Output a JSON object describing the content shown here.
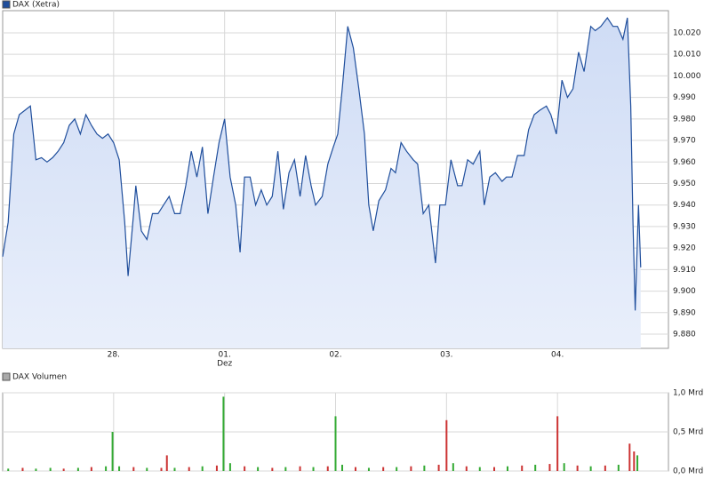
{
  "chart_data": [
    {
      "type": "line",
      "title": "DAX (Xetra)",
      "color": "#1f4e9c",
      "fill_top": "#cfdcf5",
      "fill_bottom": "#e9effb",
      "x": [
        0,
        0.05,
        0.1,
        0.15,
        0.2,
        0.25,
        0.3,
        0.35,
        0.4,
        0.45,
        0.5,
        0.55,
        0.6,
        0.65,
        0.7,
        0.75,
        0.8,
        0.85,
        0.9,
        0.95,
        1,
        1.05,
        1.1,
        1.13,
        1.18,
        1.2,
        1.25,
        1.3,
        1.35,
        1.4,
        1.45,
        1.5,
        1.55,
        1.6,
        1.65,
        1.7,
        1.75,
        1.8,
        1.85,
        1.9,
        1.95,
        2,
        2.05,
        2.1,
        2.14,
        2.18,
        2.23,
        2.28,
        2.33,
        2.38,
        2.43,
        2.48,
        2.53,
        2.58,
        2.63,
        2.68,
        2.73,
        2.78,
        2.82,
        2.88,
        2.93,
        2.98,
        3.02,
        3.06,
        3.11,
        3.16,
        3.21,
        3.26,
        3.3,
        3.34,
        3.39,
        3.45,
        3.5,
        3.54,
        3.59,
        3.64,
        3.7,
        3.74,
        3.79,
        3.84,
        3.9,
        3.94,
        3.99,
        4.04,
        4.1,
        4.14,
        4.19,
        4.24,
        4.3,
        4.34,
        4.39,
        4.44,
        4.5,
        4.54,
        4.59,
        4.64,
        4.7,
        4.74,
        4.79,
        4.84,
        4.9,
        4.94,
        4.99,
        5.04,
        5.09,
        5.14,
        5.19,
        5.24,
        5.3,
        5.34,
        5.39,
        5.45,
        5.5,
        5.54,
        5.59,
        5.63,
        5.66,
        5.68,
        5.7,
        5.73,
        5.75
      ],
      "values": [
        9916,
        9932,
        9973,
        9982,
        9984,
        9986,
        9961,
        9962,
        9960,
        9962,
        9965,
        9969,
        9977,
        9980,
        9973,
        9982,
        9977,
        9973,
        9971,
        9973,
        9969,
        9961,
        9932,
        9907,
        9936,
        9949,
        9928,
        9924,
        9936,
        9936,
        9940,
        9944,
        9936,
        9936,
        9949,
        9965,
        9953,
        9967,
        9936,
        9953,
        9969,
        9980,
        9953,
        9940,
        9918,
        9953,
        9953,
        9940,
        9947,
        9940,
        9944,
        9965,
        9938,
        9955,
        9961,
        9944,
        9963,
        9949,
        9940,
        9944,
        9959,
        9967,
        9973,
        9994,
        10023,
        10013,
        9994,
        9973,
        9940,
        9928,
        9942,
        9947,
        9957,
        9955,
        9969,
        9965,
        9961,
        9959,
        9936,
        9940,
        9913,
        9940,
        9940,
        9961,
        9949,
        9949,
        9961,
        9959,
        9965,
        9940,
        9953,
        9955,
        9951,
        9953,
        9953,
        9963,
        9963,
        9975,
        9982,
        9984,
        9986,
        9982,
        9973,
        9998,
        9990,
        9994,
        10011,
        10002,
        10023,
        10021,
        10023,
        10027,
        10023,
        10023,
        10017,
        10027,
        9986,
        9932,
        9891,
        9940,
        9911
      ],
      "xlim": [
        0,
        6
      ],
      "xticks": [
        {
          "value": 1,
          "label": "28."
        },
        {
          "value": 2,
          "label": "01."
        },
        {
          "value": 3,
          "label": "02."
        },
        {
          "value": 4,
          "label": "03."
        },
        {
          "value": 5,
          "label": "04."
        }
      ],
      "x_month_labels": [
        {
          "value": 2,
          "label": "Dez"
        }
      ],
      "ylim": [
        9873.4,
        10030.3
      ],
      "yticks": [
        {
          "value": 9880,
          "label": "9.880"
        },
        {
          "value": 9890,
          "label": "9.890"
        },
        {
          "value": 9900,
          "label": "9.900"
        },
        {
          "value": 9910,
          "label": "9.910"
        },
        {
          "value": 9920,
          "label": "9.920"
        },
        {
          "value": 9930,
          "label": "9.930"
        },
        {
          "value": 9940,
          "label": "9.940"
        },
        {
          "value": 9950,
          "label": "9.950"
        },
        {
          "value": 9960,
          "label": "9.960"
        },
        {
          "value": 9970,
          "label": "9.970"
        },
        {
          "value": 9980,
          "label": "9.980"
        },
        {
          "value": 9990,
          "label": "9.990"
        },
        {
          "value": 10000,
          "label": "10.000"
        },
        {
          "value": 10010,
          "label": "10.010"
        },
        {
          "value": 10020,
          "label": "10.020"
        }
      ],
      "grid": true
    },
    {
      "type": "bar",
      "title": "DAX Volumen",
      "color": "#aaaaaa",
      "x": [
        0.05,
        0.18,
        0.3,
        0.43,
        0.55,
        0.68,
        0.8,
        0.93,
        0.99,
        1.05,
        1.18,
        1.3,
        1.43,
        1.48,
        1.55,
        1.68,
        1.8,
        1.93,
        1.99,
        2.05,
        2.18,
        2.3,
        2.43,
        2.55,
        2.68,
        2.8,
        2.93,
        3.0,
        3.06,
        3.18,
        3.3,
        3.43,
        3.55,
        3.68,
        3.8,
        3.93,
        4.0,
        4.06,
        4.18,
        4.3,
        4.43,
        4.55,
        4.68,
        4.8,
        4.93,
        5.0,
        5.06,
        5.18,
        5.3,
        5.43,
        5.55,
        5.65,
        5.69,
        5.72
      ],
      "values": [
        0.03,
        0.04,
        0.03,
        0.04,
        0.03,
        0.04,
        0.05,
        0.06,
        0.5,
        0.06,
        0.05,
        0.04,
        0.04,
        0.2,
        0.04,
        0.05,
        0.06,
        0.07,
        0.95,
        0.1,
        0.06,
        0.05,
        0.04,
        0.05,
        0.06,
        0.05,
        0.06,
        0.7,
        0.08,
        0.05,
        0.04,
        0.05,
        0.05,
        0.06,
        0.07,
        0.08,
        0.65,
        0.1,
        0.06,
        0.05,
        0.05,
        0.06,
        0.07,
        0.08,
        0.09,
        0.7,
        0.1,
        0.07,
        0.06,
        0.07,
        0.08,
        0.35,
        0.25,
        0.2
      ],
      "bar_colors": [
        "#3a3",
        "#c33",
        "#3a3",
        "#3a3",
        "#c33",
        "#3a3",
        "#c33",
        "#3a3",
        "#3a3",
        "#3a3",
        "#c33",
        "#3a3",
        "#c33",
        "#c33",
        "#3a3",
        "#c33",
        "#3a3",
        "#c33",
        "#3a3",
        "#3a3",
        "#c33",
        "#3a3",
        "#c33",
        "#3a3",
        "#c33",
        "#3a3",
        "#c33",
        "#3a3",
        "#3a3",
        "#c33",
        "#3a3",
        "#c33",
        "#3a3",
        "#c33",
        "#3a3",
        "#c33",
        "#c33",
        "#3a3",
        "#c33",
        "#3a3",
        "#c33",
        "#3a3",
        "#c33",
        "#3a3",
        "#c33",
        "#c33",
        "#3a3",
        "#c33",
        "#3a3",
        "#c33",
        "#3a3",
        "#c33",
        "#c33",
        "#3a3"
      ],
      "xlim": [
        0,
        6
      ],
      "xticks": [
        1,
        2,
        3,
        4,
        5
      ],
      "ylim": [
        0,
        1
      ],
      "yticks": [
        {
          "value": 0,
          "label": "0,0 Mrd"
        },
        {
          "value": 0.5,
          "label": "0,5 Mrd"
        },
        {
          "value": 1,
          "label": "1,0 Mrd"
        }
      ],
      "grid": true
    }
  ]
}
